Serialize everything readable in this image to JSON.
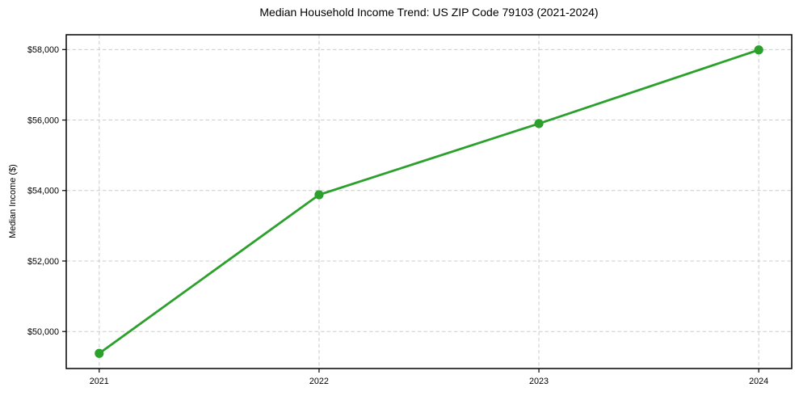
{
  "chart_data": {
    "type": "line",
    "title": "Median Household Income Trend: US ZIP Code 79103 (2021-2024)",
    "xlabel": "",
    "ylabel": "Median Income ($)",
    "x": [
      2021,
      2022,
      2023,
      2024
    ],
    "x_tick_labels": [
      "2021",
      "2022",
      "2023",
      "2024"
    ],
    "values": [
      49380,
      53880,
      55900,
      57990
    ],
    "y_ticks": [
      50000,
      52000,
      54000,
      56000,
      58000
    ],
    "y_tick_labels": [
      "$50,000",
      "$52,000",
      "$54,000",
      "$56,000",
      "$58,000"
    ],
    "xlim": [
      2020.85,
      2024.15
    ],
    "ylim": [
      48950,
      58420
    ],
    "grid": "both-dashed",
    "legend": "none",
    "marker": "circle",
    "colors": {
      "line": "#2ca02c",
      "marker": "#2ca02c",
      "grid": "#cccccc",
      "axis": "#000000",
      "text": "#000000",
      "background": "#ffffff"
    }
  }
}
